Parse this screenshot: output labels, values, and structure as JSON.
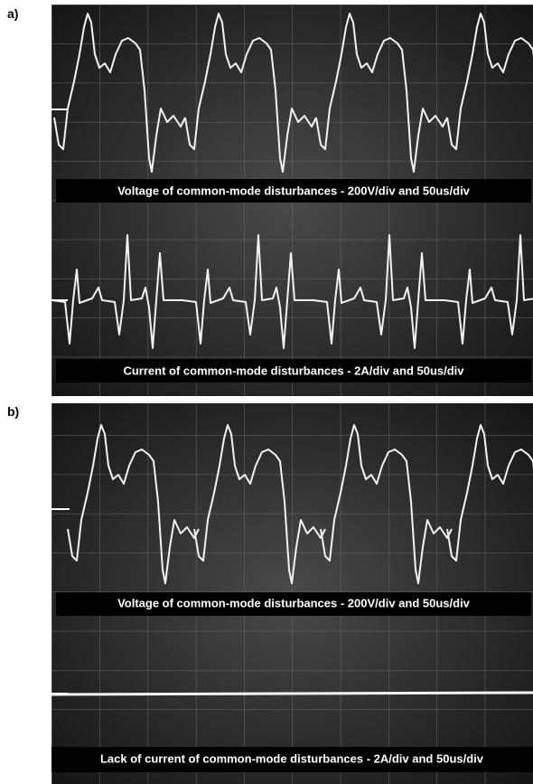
{
  "panel_a": {
    "label": "a)",
    "voltage_caption": "Voltage of common-mode disturbances - 200V/div and 50us/div",
    "current_caption": "Current of common-mode disturbances - 2A/div and 50us/div"
  },
  "panel_b": {
    "label": "b)",
    "voltage_caption": "Voltage of common-mode disturbances - 200V/div and 50us/div",
    "current_caption": "Lack of current of common-mode disturbances - 2A/div and 50us/div"
  }
}
